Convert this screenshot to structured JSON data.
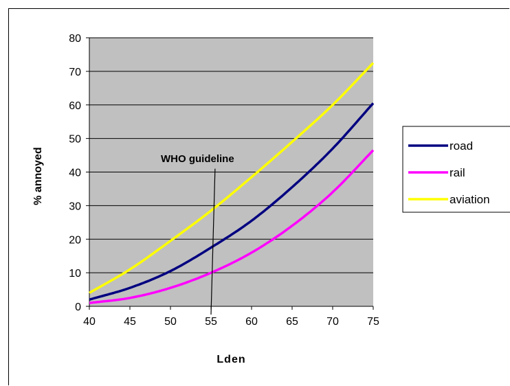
{
  "chart_data": {
    "type": "line",
    "xlabel": "Lden",
    "ylabel": "% annoyed",
    "xlim": [
      40,
      75
    ],
    "ylim": [
      0,
      80
    ],
    "x_ticks": [
      "40",
      "45",
      "50",
      "55",
      "60",
      "65",
      "70",
      "75"
    ],
    "y_ticks": [
      "0",
      "10",
      "20",
      "30",
      "40",
      "50",
      "60",
      "70",
      "80"
    ],
    "grid": "horizontal",
    "plot_background": "#c0c0c0",
    "legend_position": "right",
    "x": [
      40,
      45,
      50,
      55,
      60,
      65,
      70,
      75
    ],
    "series": [
      {
        "name": "road",
        "color": "#000080",
        "values": [
          2,
          5.5,
          10.5,
          17.5,
          25.5,
          35.5,
          47,
          60.5
        ]
      },
      {
        "name": "rail",
        "color": "#ff00ff",
        "values": [
          1,
          2.5,
          5.5,
          10,
          16,
          24,
          34,
          46.5
        ]
      },
      {
        "name": "aviation",
        "color": "#ffff00",
        "values": [
          4,
          11,
          19.5,
          28.5,
          38.5,
          49,
          60,
          72.5
        ]
      }
    ],
    "annotation": {
      "text": "WHO guideline",
      "x_bottom": 55,
      "x_top": 55.5,
      "y_top": 41
    }
  }
}
